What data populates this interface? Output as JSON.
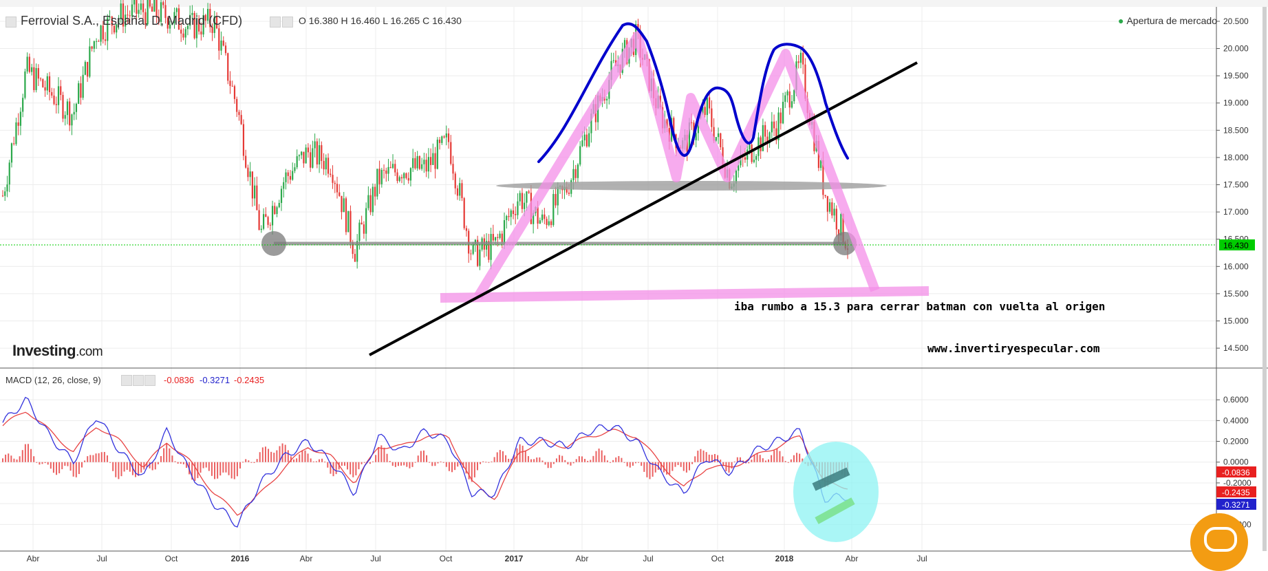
{
  "header": {
    "title": "Ferrovial S.A., España, D, Madrid (CFD)",
    "ohlc": "O 16.380 H 16.460 L 16.265 C 16.430",
    "market_status": "Apertura de mercado"
  },
  "macd_header": {
    "label": "MACD (12, 26, close, 9)",
    "v1": "-0.0836",
    "v2": "-0.3271",
    "v3": "-0.2435"
  },
  "logo": {
    "main": "Investing",
    "suffix": ".com"
  },
  "annotations": {
    "target_note": "iba rumbo a 15.3 para cerrar batman con vuelta al origen",
    "website": "www.invertiryespecular.com"
  },
  "colors": {
    "up": "#2ba84a",
    "down": "#e53935",
    "pink": "#f48fe8",
    "blue": "#0000cc",
    "cyan": "#8ef3f3",
    "price_tag": "#00cc00",
    "macd_line": "#3333dd",
    "signal_line": "#e84444"
  },
  "chart_data": [
    {
      "type": "candlestick",
      "title": "Ferrovial S.A., España, D, Madrid (CFD)",
      "x_ticks": [
        "Abr",
        "Jul",
        "Oct",
        "2016",
        "Abr",
        "Jul",
        "Oct",
        "2017",
        "Abr",
        "Jul",
        "Oct",
        "2018",
        "Abr",
        "Jul"
      ],
      "y_ticks": [
        "20.500",
        "20.000",
        "19.500",
        "19.000",
        "18.500",
        "18.000",
        "17.500",
        "17.000",
        "16.500",
        "16.000",
        "15.500",
        "15.000",
        "14.500"
      ],
      "ylim": [
        14.4,
        20.55
      ],
      "last_price": "16.430",
      "last_price_value": 16.43,
      "series": [
        {
          "x": [
            "2015-03",
            "2015-04",
            "2015-05",
            "2015-06",
            "2015-07",
            "2015-08",
            "2015-09",
            "2015-10",
            "2015-11",
            "2015-12",
            "2016-01",
            "2016-02",
            "2016-03",
            "2016-04",
            "2016-05",
            "2016-06",
            "2016-07",
            "2016-08",
            "2016-09",
            "2016-10",
            "2016-11",
            "2016-12",
            "2017-01",
            "2017-02",
            "2017-03",
            "2017-04",
            "2017-05",
            "2017-06",
            "2017-07",
            "2017-08",
            "2017-09",
            "2017-10",
            "2017-11",
            "2017-12",
            "2018-01",
            "2018-02",
            "2018-03"
          ],
          "values": [
            17.3,
            19.6,
            19.2,
            18.8,
            20.3,
            20.6,
            20.7,
            20.6,
            20.4,
            20.5,
            18.9,
            16.6,
            17.6,
            18.1,
            17.9,
            16.3,
            17.6,
            17.8,
            17.8,
            18.3,
            16.2,
            16.4,
            17.3,
            16.8,
            17.4,
            18.6,
            19.6,
            20.2,
            18.8,
            18.2,
            18.9,
            17.6,
            18.2,
            18.6,
            19.7,
            17.4,
            16.43
          ]
        }
      ],
      "drawings": [
        "blue batman outline curve",
        "pink trend lines",
        "black ascending trendline",
        "grey neckline ellipse at 17.500",
        "grey horizontal line at 16.430",
        "pink horizontal target line near 15.500"
      ]
    },
    {
      "type": "histogram",
      "title": "MACD (12, 26, close, 9)",
      "y_ticks": [
        "0.6000",
        "0.4000",
        "0.2000",
        "0.0000",
        "-0.2000",
        "-0.4000",
        "-0.6000"
      ],
      "ylim": [
        -0.75,
        0.72
      ],
      "last_values": {
        "histogram": -0.0836,
        "macd": -0.3271,
        "signal": -0.2435
      },
      "series": [
        {
          "name": "MACD",
          "values": [
            0.38,
            0.6,
            0.25,
            0.0,
            0.45,
            0.1,
            -0.15,
            0.3,
            -0.1,
            -0.4,
            -0.6,
            -0.2,
            0.05,
            0.2,
            0.0,
            -0.3,
            0.25,
            0.1,
            0.3,
            0.2,
            -0.3,
            -0.3,
            0.2,
            0.2,
            0.15,
            0.3,
            0.35,
            0.2,
            -0.1,
            -0.3,
            0.05,
            -0.1,
            0.1,
            0.2,
            0.3,
            -0.35,
            -0.33
          ]
        },
        {
          "name": "Signal",
          "values": [
            0.35,
            0.5,
            0.3,
            0.1,
            0.35,
            0.2,
            -0.05,
            0.2,
            0.0,
            -0.3,
            -0.5,
            -0.3,
            -0.05,
            0.15,
            0.05,
            -0.2,
            0.15,
            0.15,
            0.25,
            0.25,
            -0.2,
            -0.35,
            0.1,
            0.2,
            0.15,
            0.25,
            0.3,
            0.25,
            0.0,
            -0.25,
            -0.05,
            -0.05,
            0.05,
            0.15,
            0.25,
            -0.2,
            -0.24
          ]
        }
      ]
    }
  ]
}
